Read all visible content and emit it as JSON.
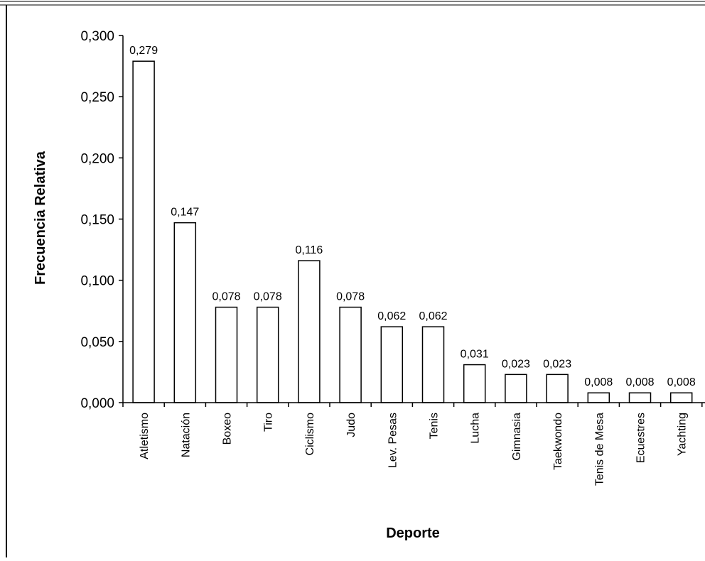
{
  "chart_data": {
    "type": "bar",
    "title": "",
    "xlabel": "Deporte",
    "ylabel": "Frecuencia Relativa",
    "ylim": [
      0,
      0.3
    ],
    "yticks": [
      0,
      0.05,
      0.1,
      0.15,
      0.2,
      0.25,
      0.3
    ],
    "ytick_labels": [
      "0,000",
      "0,050",
      "0,100",
      "0,150",
      "0,200",
      "0,250",
      "0,300"
    ],
    "grid": false,
    "legend": "none",
    "categories": [
      "Atletismo",
      "Natación",
      "Boxeo",
      "Tiro",
      "Ciclismo",
      "Judo",
      "Lev. Pesas",
      "Tenis",
      "Lucha",
      "Gimnasia",
      "Taekwondo",
      "Tenis de Mesa",
      "Ecuestres",
      "Yachting"
    ],
    "values": [
      0.279,
      0.147,
      0.078,
      0.078,
      0.116,
      0.078,
      0.062,
      0.062,
      0.031,
      0.023,
      0.023,
      0.008,
      0.008,
      0.008
    ],
    "data_labels": [
      "0,279",
      "0,147",
      "0,078",
      "0,078",
      "0,116",
      "0,078",
      "0,062",
      "0,062",
      "0,031",
      "0,023",
      "0,023",
      "0,008",
      "0,008",
      "0,008"
    ],
    "bar_fill": "#ffffff",
    "bar_stroke": "#000000"
  }
}
